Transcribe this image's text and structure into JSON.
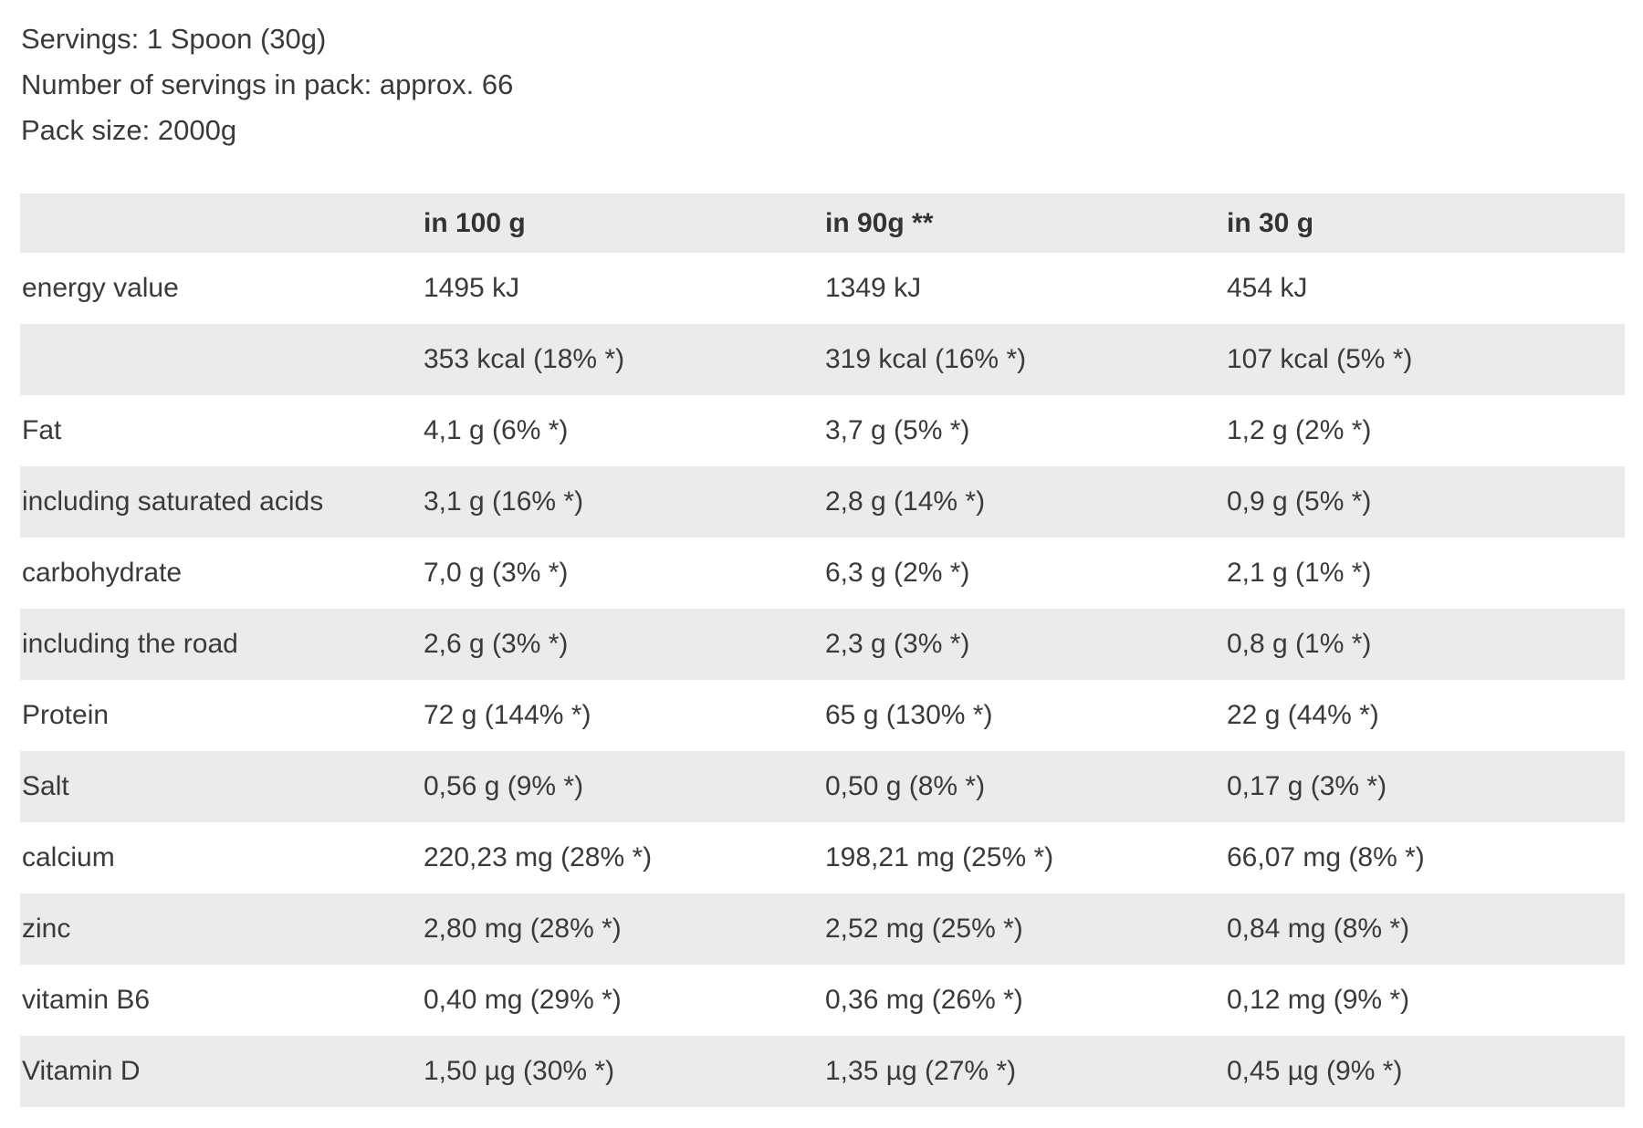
{
  "intro": {
    "servings": "Servings: 1 Spoon (30g)",
    "servings_count": "Number of servings in pack: approx. 66",
    "pack_size": "Pack size: 2000g"
  },
  "table": {
    "headers": [
      "",
      "in 100 g",
      "in 90g **",
      "in 30 g"
    ],
    "rows": [
      {
        "label": "energy value",
        "indent": false,
        "values": [
          "1495 kJ",
          "1349 kJ",
          "454 kJ"
        ]
      },
      {
        "label": "",
        "indent": false,
        "values": [
          "353 kcal (18% *)",
          "319 kcal (16% *)",
          "107 kcal (5% *)"
        ]
      },
      {
        "label": "Fat",
        "indent": false,
        "values": [
          "4,1 g (6% *)",
          "3,7 g (5% *)",
          "1,2 g (2% *)"
        ]
      },
      {
        "label": "including saturated acids",
        "indent": true,
        "values": [
          "3,1 g (16% *)",
          "2,8 g (14% *)",
          "0,9 g (5% *)"
        ]
      },
      {
        "label": "carbohydrate",
        "indent": false,
        "values": [
          "7,0 g (3% *)",
          "6,3 g (2% *)",
          "2,1 g (1% *)"
        ]
      },
      {
        "label": "including the road",
        "indent": true,
        "values": [
          "2,6 g (3% *)",
          "2,3 g (3% *)",
          "0,8 g (1% *)"
        ]
      },
      {
        "label": "Protein",
        "indent": false,
        "values": [
          "72 g (144% *)",
          "65 g (130% *)",
          "22 g (44% *)"
        ]
      },
      {
        "label": "Salt",
        "indent": false,
        "values": [
          "0,56 g (9% *)",
          "0,50 g (8% *)",
          "0,17 g (3% *)"
        ]
      },
      {
        "label": "calcium",
        "indent": false,
        "values": [
          "220,23 mg (28% *)",
          "198,21 mg (25% *)",
          "66,07 mg (8% *)"
        ]
      },
      {
        "label": "zinc",
        "indent": false,
        "values": [
          "2,80 mg (28% *)",
          "2,52 mg (25% *)",
          "0,84 mg (8% *)"
        ]
      },
      {
        "label": "vitamin B6",
        "indent": false,
        "values": [
          "0,40 mg (29% *)",
          "0,36 mg (26% *)",
          "0,12 mg (9% *)"
        ]
      },
      {
        "label": "Vitamin D",
        "indent": false,
        "values": [
          "1,50 µg (30% *)",
          "1,35 µg (27% *)",
          "0,45 µg (9% *)"
        ]
      }
    ]
  }
}
